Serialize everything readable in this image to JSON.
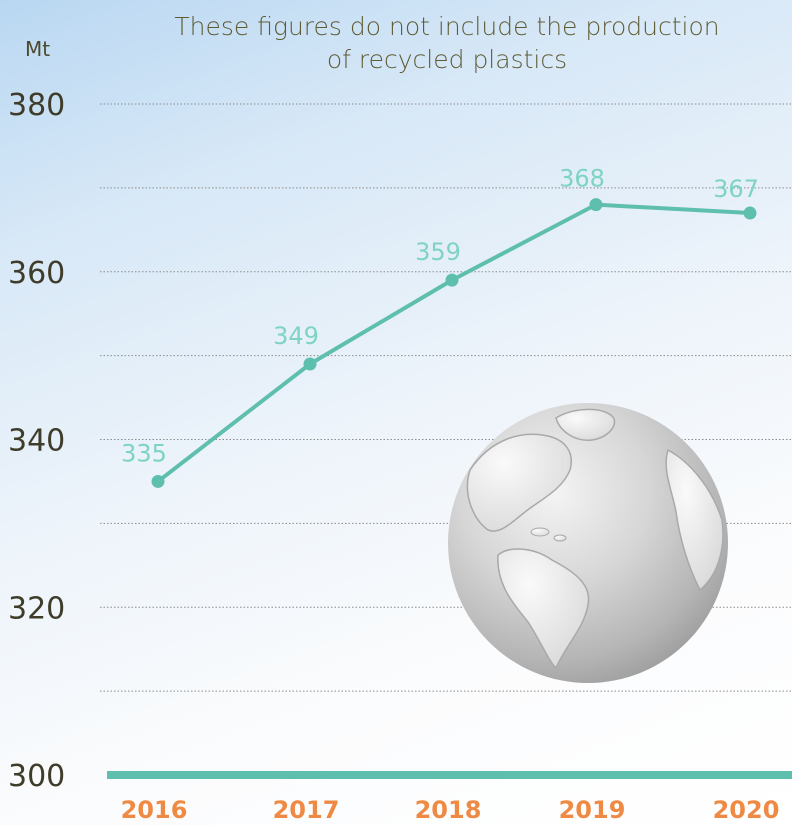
{
  "chart_data": {
    "type": "line",
    "title": "",
    "subtitle": [
      "These figures do not include the production",
      "of recycled plastics"
    ],
    "ylabel": "Mt",
    "xlabel": "",
    "categories": [
      "2016",
      "2017",
      "2018",
      "2019",
      "2020"
    ],
    "series": [
      {
        "values": [
          335,
          349,
          359,
          368,
          367
        ],
        "color": "#5fbfae"
      }
    ],
    "data_labels": [
      "335",
      "349",
      "359",
      "368",
      "367"
    ],
    "ylim": [
      300,
      380
    ],
    "yticks": [
      "300",
      "320",
      "340",
      "360",
      "380"
    ],
    "grid": true,
    "legend": "none"
  },
  "colors": {
    "line": "#5fbfae",
    "baseline": "#5fbfae",
    "data_label": "#7fd3c4",
    "year_label": "#ef8a45",
    "axis_text": "#3f3d2a"
  },
  "decoration": {
    "icon": "globe-icon"
  }
}
